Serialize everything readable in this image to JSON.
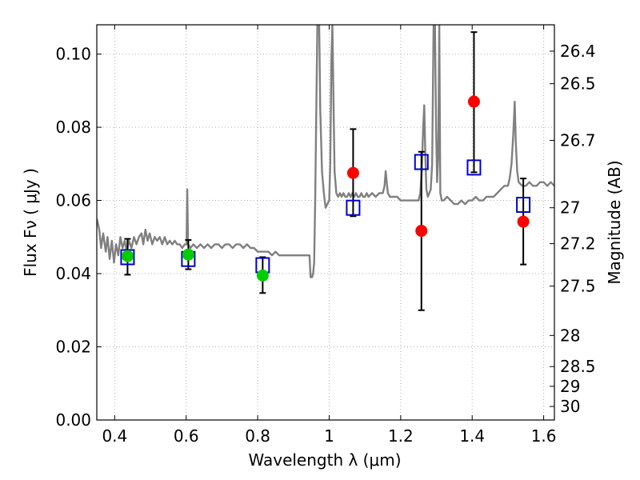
{
  "chart_data": {
    "type": "scatter",
    "xlabel": "Wavelength  λ (μm)",
    "ylabel": "Flux  Fν  ( μJy )",
    "ylabel_right": "Magnitude (AB)",
    "xlim": [
      0.35,
      1.63
    ],
    "ylim": [
      0.0,
      0.108
    ],
    "grid": true,
    "xticks": [
      0.4,
      0.6,
      0.8,
      1.0,
      1.2,
      1.4,
      1.6
    ],
    "xtick_labels": [
      "0.4",
      "0.6",
      "0.8",
      "1",
      "1.2",
      "1.4",
      "1.6"
    ],
    "yticks": [
      0.0,
      0.02,
      0.04,
      0.06,
      0.08,
      0.1
    ],
    "ytick_labels": [
      "0.00",
      "0.02",
      "0.04",
      "0.06",
      "0.08",
      "0.10"
    ],
    "right_ticks": [
      {
        "label": "26.4",
        "flux": 0.1008
      },
      {
        "label": "26.5",
        "flux": 0.0919
      },
      {
        "label": "26.7",
        "flux": 0.0764
      },
      {
        "label": "27",
        "flux": 0.058
      },
      {
        "label": "27.2",
        "flux": 0.0482
      },
      {
        "label": "27.5",
        "flux": 0.0366
      },
      {
        "label": "28",
        "flux": 0.0231
      },
      {
        "label": "28.5",
        "flux": 0.0146
      },
      {
        "label": "29",
        "flux": 0.0092
      },
      {
        "label": "30",
        "flux": 0.0037
      }
    ],
    "series": [
      {
        "kind": "line",
        "color": "#808080",
        "points": [
          [
            0.35,
            0.055
          ],
          [
            0.357,
            0.052
          ],
          [
            0.362,
            0.047
          ],
          [
            0.368,
            0.051
          ],
          [
            0.375,
            0.046
          ],
          [
            0.38,
            0.05
          ],
          [
            0.386,
            0.044
          ],
          [
            0.392,
            0.049
          ],
          [
            0.398,
            0.043
          ],
          [
            0.404,
            0.048
          ],
          [
            0.41,
            0.045
          ],
          [
            0.416,
            0.05
          ],
          [
            0.422,
            0.047
          ],
          [
            0.428,
            0.049
          ],
          [
            0.434,
            0.046
          ],
          [
            0.44,
            0.049
          ],
          [
            0.447,
            0.047
          ],
          [
            0.454,
            0.05
          ],
          [
            0.461,
            0.048
          ],
          [
            0.468,
            0.05
          ],
          [
            0.475,
            0.051
          ],
          [
            0.48,
            0.048
          ],
          [
            0.486,
            0.052
          ],
          [
            0.492,
            0.049
          ],
          [
            0.498,
            0.051
          ],
          [
            0.505,
            0.048
          ],
          [
            0.512,
            0.05
          ],
          [
            0.519,
            0.049
          ],
          [
            0.526,
            0.05
          ],
          [
            0.533,
            0.048
          ],
          [
            0.54,
            0.05
          ],
          [
            0.547,
            0.048
          ],
          [
            0.554,
            0.049
          ],
          [
            0.561,
            0.048
          ],
          [
            0.568,
            0.049
          ],
          [
            0.575,
            0.048
          ],
          [
            0.582,
            0.048
          ],
          [
            0.589,
            0.047
          ],
          [
            0.596,
            0.048
          ],
          [
            0.601,
            0.048
          ],
          [
            0.603,
            0.063
          ],
          [
            0.605,
            0.048
          ],
          [
            0.612,
            0.047
          ],
          [
            0.62,
            0.048
          ],
          [
            0.63,
            0.047
          ],
          [
            0.64,
            0.048
          ],
          [
            0.65,
            0.047
          ],
          [
            0.66,
            0.048
          ],
          [
            0.67,
            0.047
          ],
          [
            0.68,
            0.048
          ],
          [
            0.69,
            0.048
          ],
          [
            0.7,
            0.047
          ],
          [
            0.71,
            0.048
          ],
          [
            0.72,
            0.048
          ],
          [
            0.73,
            0.047
          ],
          [
            0.74,
            0.048
          ],
          [
            0.75,
            0.048
          ],
          [
            0.76,
            0.047
          ],
          [
            0.77,
            0.048
          ],
          [
            0.78,
            0.047
          ],
          [
            0.79,
            0.047
          ],
          [
            0.8,
            0.046
          ],
          [
            0.81,
            0.046
          ],
          [
            0.82,
            0.046
          ],
          [
            0.83,
            0.046
          ],
          [
            0.84,
            0.045
          ],
          [
            0.85,
            0.046
          ],
          [
            0.86,
            0.045
          ],
          [
            0.87,
            0.045
          ],
          [
            0.88,
            0.045
          ],
          [
            0.89,
            0.045
          ],
          [
            0.9,
            0.045
          ],
          [
            0.91,
            0.045
          ],
          [
            0.92,
            0.045
          ],
          [
            0.93,
            0.045
          ],
          [
            0.94,
            0.045
          ],
          [
            0.945,
            0.045
          ],
          [
            0.948,
            0.039
          ],
          [
            0.952,
            0.039
          ],
          [
            0.955,
            0.04
          ],
          [
            0.958,
            0.043
          ],
          [
            0.961,
            0.06
          ],
          [
            0.964,
            0.085
          ],
          [
            0.967,
            0.108
          ],
          [
            0.972,
            0.108
          ],
          [
            0.975,
            0.085
          ],
          [
            0.98,
            0.068
          ],
          [
            0.985,
            0.062
          ],
          [
            0.99,
            0.058
          ],
          [
            0.995,
            0.059
          ],
          [
            1.0,
            0.06
          ],
          [
            1.003,
            0.07
          ],
          [
            1.006,
            0.098
          ],
          [
            1.009,
            0.108
          ],
          [
            1.012,
            0.088
          ],
          [
            1.015,
            0.068
          ],
          [
            1.02,
            0.062
          ],
          [
            1.025,
            0.061
          ],
          [
            1.03,
            0.062
          ],
          [
            1.035,
            0.061
          ],
          [
            1.04,
            0.062
          ],
          [
            1.045,
            0.061
          ],
          [
            1.05,
            0.061
          ],
          [
            1.055,
            0.062
          ],
          [
            1.06,
            0.061
          ],
          [
            1.065,
            0.062
          ],
          [
            1.07,
            0.061
          ],
          [
            1.075,
            0.062
          ],
          [
            1.08,
            0.061
          ],
          [
            1.085,
            0.061
          ],
          [
            1.09,
            0.062
          ],
          [
            1.095,
            0.061
          ],
          [
            1.1,
            0.061
          ],
          [
            1.105,
            0.062
          ],
          [
            1.11,
            0.061
          ],
          [
            1.12,
            0.062
          ],
          [
            1.13,
            0.061
          ],
          [
            1.14,
            0.062
          ],
          [
            1.15,
            0.062
          ],
          [
            1.155,
            0.064
          ],
          [
            1.158,
            0.068
          ],
          [
            1.161,
            0.065
          ],
          [
            1.164,
            0.062
          ],
          [
            1.17,
            0.061
          ],
          [
            1.18,
            0.061
          ],
          [
            1.19,
            0.061
          ],
          [
            1.2,
            0.06
          ],
          [
            1.21,
            0.06
          ],
          [
            1.22,
            0.06
          ],
          [
            1.23,
            0.06
          ],
          [
            1.24,
            0.06
          ],
          [
            1.25,
            0.06
          ],
          [
            1.255,
            0.062
          ],
          [
            1.259,
            0.068
          ],
          [
            1.263,
            0.08
          ],
          [
            1.266,
            0.086
          ],
          [
            1.269,
            0.072
          ],
          [
            1.272,
            0.063
          ],
          [
            1.276,
            0.061
          ],
          [
            1.28,
            0.062
          ],
          [
            1.284,
            0.063
          ],
          [
            1.288,
            0.07
          ],
          [
            1.292,
            0.108
          ],
          [
            1.296,
            0.108
          ],
          [
            1.299,
            0.08
          ],
          [
            1.302,
            0.065
          ],
          [
            1.305,
            0.072
          ],
          [
            1.308,
            0.108
          ],
          [
            1.311,
            0.062
          ],
          [
            1.315,
            0.06
          ],
          [
            1.32,
            0.06
          ],
          [
            1.33,
            0.061
          ],
          [
            1.34,
            0.06
          ],
          [
            1.35,
            0.059
          ],
          [
            1.36,
            0.059
          ],
          [
            1.37,
            0.06
          ],
          [
            1.38,
            0.059
          ],
          [
            1.39,
            0.06
          ],
          [
            1.4,
            0.06
          ],
          [
            1.41,
            0.061
          ],
          [
            1.42,
            0.06
          ],
          [
            1.43,
            0.06
          ],
          [
            1.44,
            0.061
          ],
          [
            1.45,
            0.061
          ],
          [
            1.46,
            0.061
          ],
          [
            1.47,
            0.062
          ],
          [
            1.48,
            0.063
          ],
          [
            1.49,
            0.064
          ],
          [
            1.5,
            0.064
          ],
          [
            1.505,
            0.066
          ],
          [
            1.51,
            0.07
          ],
          [
            1.515,
            0.078
          ],
          [
            1.519,
            0.087
          ],
          [
            1.522,
            0.076
          ],
          [
            1.526,
            0.068
          ],
          [
            1.53,
            0.065
          ],
          [
            1.54,
            0.064
          ],
          [
            1.55,
            0.064
          ],
          [
            1.56,
            0.065
          ],
          [
            1.57,
            0.064
          ],
          [
            1.58,
            0.064
          ],
          [
            1.59,
            0.065
          ],
          [
            1.6,
            0.065
          ],
          [
            1.61,
            0.064
          ],
          [
            1.62,
            0.065
          ],
          [
            1.63,
            0.064
          ]
        ]
      },
      {
        "kind": "open-square",
        "color": "#0000cc",
        "points": [
          [
            0.436,
            0.0445
          ],
          [
            0.606,
            0.044
          ],
          [
            0.814,
            0.0423
          ],
          [
            1.067,
            0.058
          ],
          [
            1.258,
            0.0705
          ],
          [
            1.405,
            0.069
          ],
          [
            1.543,
            0.0588
          ]
        ]
      },
      {
        "kind": "filled-circle",
        "color": "#00cc00",
        "points": [
          [
            0.436,
            0.0448
          ],
          [
            0.606,
            0.0452
          ],
          [
            0.814,
            0.0395
          ]
        ]
      },
      {
        "kind": "filled-circle",
        "color": "#ff0000",
        "points": [
          [
            1.067,
            0.0675
          ],
          [
            1.258,
            0.0517
          ],
          [
            1.405,
            0.087
          ],
          [
            1.543,
            0.0542
          ]
        ]
      },
      {
        "kind": "errorbar",
        "color": "#000000",
        "bars": [
          {
            "x": 0.436,
            "low": 0.0397,
            "high": 0.0495
          },
          {
            "x": 0.606,
            "low": 0.0412,
            "high": 0.0492
          },
          {
            "x": 0.814,
            "low": 0.0347,
            "high": 0.0445
          },
          {
            "x": 1.067,
            "low": 0.0557,
            "high": 0.0795
          },
          {
            "x": 1.258,
            "low": 0.03,
            "high": 0.0733
          },
          {
            "x": 1.405,
            "low": 0.0677,
            "high": 0.106
          },
          {
            "x": 1.543,
            "low": 0.0425,
            "high": 0.066
          }
        ]
      }
    ]
  }
}
